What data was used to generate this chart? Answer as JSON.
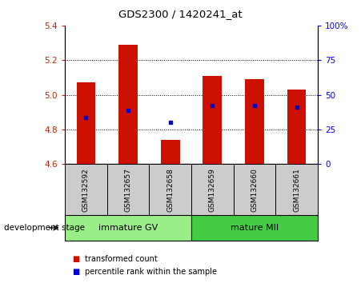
{
  "title": "GDS2300 / 1420241_at",
  "categories": [
    "GSM132592",
    "GSM132657",
    "GSM132658",
    "GSM132659",
    "GSM132660",
    "GSM132661"
  ],
  "bar_bottoms": [
    4.6,
    4.6,
    4.6,
    4.6,
    4.6,
    4.6
  ],
  "bar_tops": [
    5.07,
    5.29,
    4.74,
    5.11,
    5.09,
    5.03
  ],
  "percentile_values": [
    4.87,
    4.91,
    4.84,
    4.94,
    4.94,
    4.93
  ],
  "bar_color": "#cc1100",
  "percentile_color": "#0000cc",
  "ylim_left": [
    4.6,
    5.4
  ],
  "ylim_right": [
    0,
    100
  ],
  "yticks_left": [
    4.6,
    4.8,
    5.0,
    5.2,
    5.4
  ],
  "yticks_right": [
    0,
    25,
    50,
    75,
    100
  ],
  "ytick_labels_right": [
    "0",
    "25",
    "50",
    "75",
    "100%"
  ],
  "grid_values": [
    4.8,
    5.0,
    5.2
  ],
  "groups": [
    {
      "label": "immature GV",
      "indices": [
        0,
        1,
        2
      ],
      "color": "#99ee88"
    },
    {
      "label": "mature MII",
      "indices": [
        3,
        4,
        5
      ],
      "color": "#44cc44"
    }
  ],
  "group_label_prefix": "development stage",
  "legend_items": [
    {
      "label": "transformed count",
      "color": "#cc1100"
    },
    {
      "label": "percentile rank within the sample",
      "color": "#0000cc"
    }
  ],
  "bar_width": 0.45,
  "plot_bg": "#ffffff",
  "tick_area_bg": "#cccccc"
}
